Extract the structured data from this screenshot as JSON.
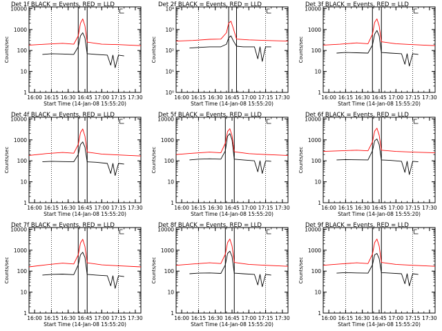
{
  "layout": {
    "rows": 3,
    "cols": 3
  },
  "colors": {
    "events": "#000000",
    "lld": "#ff0000",
    "axis": "#000000",
    "background": "#ffffff"
  },
  "chart_data": [
    {
      "type": "line",
      "title": "Det 1f BLACK = Events, RED = LLD",
      "xlabel": "Start Time (14-Jan-08 15:55:20)",
      "ylabel": "Counts/sec",
      "x_ticks": [
        "16:00",
        "16:15",
        "16:30",
        "16:45",
        "17:00",
        "17:15",
        "17:30"
      ],
      "y_ticks": [
        "1",
        "10",
        "100",
        "1000",
        "10000"
      ],
      "yscale": "log",
      "ylim": [
        1,
        12000
      ],
      "xlim": [
        "15:55",
        "17:35"
      ],
      "vlines_dotted": [
        "16:15",
        "17:15"
      ],
      "vlines_solid": [
        "16:39",
        "16:47"
      ],
      "legend": "none",
      "series": [
        {
          "name": "Events",
          "color": "#000000",
          "x": [
            "16:07",
            "16:15",
            "16:25",
            "16:35",
            "16:39",
            "16:41",
            "16:43",
            "16:45",
            "16:47",
            "16:55",
            "17:05",
            "17:08",
            "17:10",
            "17:12",
            "17:15",
            "17:20"
          ],
          "values": [
            65,
            70,
            68,
            65,
            150,
            500,
            700,
            400,
            70,
            65,
            60,
            20,
            60,
            15,
            60,
            55
          ]
        },
        {
          "name": "LLD",
          "color": "#ff0000",
          "x": [
            "15:55",
            "16:10",
            "16:25",
            "16:35",
            "16:39",
            "16:41",
            "16:43",
            "16:45",
            "16:47",
            "17:00",
            "17:15",
            "17:35"
          ],
          "values": [
            180,
            200,
            220,
            200,
            500,
            2000,
            3200,
            1500,
            250,
            200,
            190,
            170
          ]
        }
      ]
    },
    {
      "type": "line",
      "title": "Det 2f BLACK = Events, RED = LLD",
      "xlabel": "Start Time (14-Jan-08 15:55:20)",
      "ylabel": "Counts/sec",
      "x_ticks": [
        "16:00",
        "16:15",
        "16:30",
        "16:45",
        "17:00",
        "17:15",
        "17:30"
      ],
      "y_ticks": [
        "10⁰",
        "10¹",
        "10²",
        "10³",
        "10⁴"
      ],
      "yscale": "log",
      "ylim": [
        1,
        12000
      ],
      "xlim": [
        "15:55",
        "17:35"
      ],
      "vlines_dotted": [
        "16:15",
        "17:15"
      ],
      "vlines_solid": [
        "16:42",
        "16:49"
      ],
      "legend": "none",
      "series": [
        {
          "name": "Events",
          "color": "#000000",
          "x": [
            "16:07",
            "16:15",
            "16:25",
            "16:35",
            "16:40",
            "16:42",
            "16:44",
            "16:46",
            "16:49",
            "16:55",
            "17:05",
            "17:08",
            "17:10",
            "17:12",
            "17:15",
            "17:20"
          ],
          "values": [
            130,
            140,
            150,
            150,
            200,
            400,
            500,
            300,
            160,
            150,
            150,
            40,
            150,
            30,
            150,
            150
          ]
        },
        {
          "name": "LLD",
          "color": "#ff0000",
          "x": [
            "15:55",
            "16:10",
            "16:25",
            "16:35",
            "16:40",
            "16:42",
            "16:44",
            "16:46",
            "16:49",
            "17:00",
            "17:15",
            "17:35"
          ],
          "values": [
            280,
            300,
            340,
            350,
            700,
            2000,
            2500,
            1200,
            350,
            320,
            300,
            280
          ]
        }
      ]
    },
    {
      "type": "line",
      "title": "Det 3f BLACK = Events, RED = LLD",
      "xlabel": "Start Time (14-Jan-08 15:55:20)",
      "ylabel": "Counts/sec",
      "x_ticks": [
        "16:00",
        "16:15",
        "16:30",
        "16:45",
        "17:00",
        "17:15",
        "17:30"
      ],
      "y_ticks": [
        "1",
        "10",
        "100",
        "1000",
        "10000"
      ],
      "yscale": "log",
      "ylim": [
        1,
        12000
      ],
      "xlim": [
        "15:55",
        "17:35"
      ],
      "vlines_dotted": [
        "16:15",
        "17:15"
      ],
      "vlines_solid": [
        "16:39",
        "16:47"
      ],
      "legend": "none",
      "series": [
        {
          "name": "Events",
          "color": "#000000",
          "x": [
            "16:07",
            "16:15",
            "16:25",
            "16:35",
            "16:39",
            "16:41",
            "16:43",
            "16:45",
            "16:47",
            "16:55",
            "17:05",
            "17:08",
            "17:10",
            "17:12",
            "17:15",
            "17:20"
          ],
          "values": [
            75,
            80,
            78,
            75,
            180,
            600,
            900,
            500,
            80,
            75,
            70,
            22,
            70,
            18,
            70,
            65
          ]
        },
        {
          "name": "LLD",
          "color": "#ff0000",
          "x": [
            "15:55",
            "16:10",
            "16:25",
            "16:35",
            "16:39",
            "16:41",
            "16:43",
            "16:45",
            "16:47",
            "17:00",
            "17:15",
            "17:35"
          ],
          "values": [
            180,
            200,
            230,
            210,
            600,
            2200,
            3200,
            1500,
            260,
            210,
            190,
            170
          ]
        }
      ]
    },
    {
      "type": "line",
      "title": "Det 4f BLACK = Events, RED = LLD",
      "xlabel": "Start Time (14-Jan-08 15:55:20)",
      "ylabel": "Counts/sec",
      "x_ticks": [
        "16:00",
        "16:15",
        "16:30",
        "16:45",
        "17:00",
        "17:15",
        "17:30"
      ],
      "y_ticks": [
        "1",
        "10",
        "100",
        "1000",
        "10000"
      ],
      "yscale": "log",
      "ylim": [
        1,
        12000
      ],
      "xlim": [
        "15:55",
        "17:35"
      ],
      "vlines_dotted": [
        "16:15",
        "17:15"
      ],
      "vlines_solid": [
        "16:39",
        "16:47"
      ],
      "legend": "none",
      "series": [
        {
          "name": "Events",
          "color": "#000000",
          "x": [
            "16:07",
            "16:15",
            "16:25",
            "16:35",
            "16:39",
            "16:41",
            "16:43",
            "16:45",
            "16:47",
            "16:55",
            "17:05",
            "17:08",
            "17:10",
            "17:12",
            "17:15",
            "17:20"
          ],
          "values": [
            90,
            95,
            92,
            90,
            200,
            600,
            800,
            450,
            90,
            85,
            75,
            25,
            75,
            20,
            75,
            70
          ]
        },
        {
          "name": "LLD",
          "color": "#ff0000",
          "x": [
            "15:55",
            "16:10",
            "16:25",
            "16:35",
            "16:39",
            "16:41",
            "16:43",
            "16:45",
            "16:47",
            "17:00",
            "17:15",
            "17:35"
          ],
          "values": [
            180,
            220,
            250,
            230,
            600,
            2200,
            3300,
            1500,
            260,
            210,
            190,
            170
          ]
        }
      ]
    },
    {
      "type": "line",
      "title": "Det 5f BLACK = Events, RED = LLD",
      "xlabel": "Start Time (14-Jan-08 15:55:20)",
      "ylabel": "Counts/sec",
      "x_ticks": [
        "16:00",
        "16:15",
        "16:30",
        "16:45",
        "17:00",
        "17:15",
        "17:30"
      ],
      "y_ticks": [
        "1",
        "10",
        "100",
        "1000",
        "10000"
      ],
      "yscale": "log",
      "ylim": [
        1,
        12000
      ],
      "xlim": [
        "15:55",
        "17:35"
      ],
      "vlines_dotted": [
        "16:15",
        "17:15"
      ],
      "vlines_solid": [
        "16:39",
        "16:47"
      ],
      "legend": "none",
      "series": [
        {
          "name": "Events",
          "color": "#000000",
          "x": [
            "16:07",
            "16:15",
            "16:25",
            "16:35",
            "16:39",
            "16:41",
            "16:43",
            "16:45",
            "16:47",
            "16:55",
            "17:05",
            "17:08",
            "17:10",
            "17:12",
            "17:15",
            "17:20"
          ],
          "values": [
            110,
            120,
            125,
            120,
            300,
            1500,
            2000,
            1000,
            120,
            110,
            100,
            30,
            100,
            25,
            100,
            95
          ]
        },
        {
          "name": "LLD",
          "color": "#ff0000",
          "x": [
            "15:55",
            "16:10",
            "16:25",
            "16:35",
            "16:39",
            "16:41",
            "16:43",
            "16:45",
            "16:47",
            "17:00",
            "17:15",
            "17:35"
          ],
          "values": [
            200,
            230,
            260,
            240,
            700,
            2500,
            3400,
            1600,
            270,
            220,
            200,
            180
          ]
        }
      ]
    },
    {
      "type": "line",
      "title": "Det 6f BLACK = Events, RED = LLD",
      "xlabel": "Start Time (14-Jan-08 15:55:20)",
      "ylabel": "Counts/sec",
      "x_ticks": [
        "16:00",
        "16:15",
        "16:30",
        "16:45",
        "17:00",
        "17:15",
        "17:30"
      ],
      "y_ticks": [
        "1",
        "10",
        "100",
        "1000",
        "10000"
      ],
      "yscale": "log",
      "ylim": [
        1,
        12000
      ],
      "xlim": [
        "15:55",
        "17:35"
      ],
      "vlines_dotted": [
        "16:15",
        "17:15"
      ],
      "vlines_solid": [
        "16:39",
        "16:47"
      ],
      "legend": "none",
      "series": [
        {
          "name": "Events",
          "color": "#000000",
          "x": [
            "16:07",
            "16:15",
            "16:25",
            "16:35",
            "16:39",
            "16:41",
            "16:43",
            "16:45",
            "16:47",
            "16:55",
            "17:05",
            "17:08",
            "17:10",
            "17:12",
            "17:15",
            "17:20"
          ],
          "values": [
            110,
            115,
            112,
            110,
            300,
            900,
            1100,
            600,
            110,
            105,
            95,
            28,
            95,
            22,
            95,
            90
          ]
        },
        {
          "name": "LLD",
          "color": "#ff0000",
          "x": [
            "15:55",
            "16:10",
            "16:25",
            "16:35",
            "16:39",
            "16:41",
            "16:43",
            "16:45",
            "16:47",
            "17:00",
            "17:15",
            "17:35"
          ],
          "values": [
            280,
            300,
            320,
            300,
            800,
            2600,
            3600,
            1700,
            320,
            280,
            260,
            240
          ]
        }
      ]
    },
    {
      "type": "line",
      "title": "Det 7f BLACK = Events, RED = LLD",
      "xlabel": "Start Time (14-Jan-08 15:55:20)",
      "ylabel": "Counts/sec",
      "x_ticks": [
        "16:00",
        "16:15",
        "16:30",
        "16:45",
        "17:00",
        "17:15",
        "17:30"
      ],
      "y_ticks": [
        "1",
        "10",
        "100",
        "1000",
        "10000"
      ],
      "yscale": "log",
      "ylim": [
        1,
        12000
      ],
      "xlim": [
        "15:55",
        "17:35"
      ],
      "vlines_dotted": [
        "16:15",
        "17:15"
      ],
      "vlines_solid": [
        "16:39",
        "16:47"
      ],
      "legend": "none",
      "series": [
        {
          "name": "Events",
          "color": "#000000",
          "x": [
            "16:07",
            "16:15",
            "16:25",
            "16:35",
            "16:39",
            "16:41",
            "16:43",
            "16:45",
            "16:47",
            "16:55",
            "17:05",
            "17:08",
            "17:10",
            "17:12",
            "17:15",
            "17:20"
          ],
          "values": [
            65,
            70,
            72,
            68,
            200,
            600,
            800,
            450,
            70,
            65,
            60,
            20,
            60,
            15,
            60,
            55
          ]
        },
        {
          "name": "LLD",
          "color": "#ff0000",
          "x": [
            "15:55",
            "16:10",
            "16:25",
            "16:35",
            "16:39",
            "16:41",
            "16:43",
            "16:45",
            "16:47",
            "17:00",
            "17:15",
            "17:35"
          ],
          "values": [
            160,
            200,
            240,
            220,
            600,
            2200,
            3300,
            1500,
            250,
            200,
            180,
            160
          ]
        }
      ]
    },
    {
      "type": "line",
      "title": "Det 8f BLACK = Events, RED = LLD",
      "xlabel": "Start Time (14-Jan-08 15:55:20)",
      "ylabel": "Counts/sec",
      "x_ticks": [
        "16:00",
        "16:15",
        "16:30",
        "16:45",
        "17:00",
        "17:15",
        "17:30"
      ],
      "y_ticks": [
        "1",
        "10",
        "100",
        "1000",
        "10000"
      ],
      "yscale": "log",
      "ylim": [
        1,
        12000
      ],
      "xlim": [
        "15:55",
        "17:35"
      ],
      "vlines_dotted": [
        "16:15",
        "17:15"
      ],
      "vlines_solid": [
        "16:39",
        "16:47"
      ],
      "legend": "none",
      "series": [
        {
          "name": "Events",
          "color": "#000000",
          "x": [
            "16:07",
            "16:15",
            "16:25",
            "16:35",
            "16:39",
            "16:41",
            "16:43",
            "16:45",
            "16:47",
            "16:55",
            "17:05",
            "17:08",
            "17:10",
            "17:12",
            "17:15",
            "17:20"
          ],
          "values": [
            75,
            80,
            82,
            78,
            200,
            700,
            900,
            500,
            80,
            75,
            70,
            22,
            70,
            18,
            70,
            65
          ]
        },
        {
          "name": "LLD",
          "color": "#ff0000",
          "x": [
            "15:55",
            "16:10",
            "16:25",
            "16:35",
            "16:39",
            "16:41",
            "16:43",
            "16:45",
            "16:47",
            "17:00",
            "17:15",
            "17:35"
          ],
          "values": [
            190,
            220,
            250,
            230,
            650,
            2300,
            3400,
            1600,
            260,
            210,
            190,
            170
          ]
        }
      ]
    },
    {
      "type": "line",
      "title": "Det 9f BLACK = Events, RED = LLD",
      "xlabel": "Start Time (14-Jan-08 15:55:20)",
      "ylabel": "Counts/sec",
      "x_ticks": [
        "16:00",
        "16:15",
        "16:30",
        "16:45",
        "17:00",
        "17:15",
        "17:30"
      ],
      "y_ticks": [
        "1",
        "10",
        "100",
        "1000",
        "10000"
      ],
      "yscale": "log",
      "ylim": [
        1,
        12000
      ],
      "xlim": [
        "15:55",
        "17:35"
      ],
      "vlines_dotted": [
        "16:15",
        "17:15"
      ],
      "vlines_solid": [
        "16:39",
        "16:47"
      ],
      "legend": "none",
      "series": [
        {
          "name": "Events",
          "color": "#000000",
          "x": [
            "16:07",
            "16:15",
            "16:25",
            "16:35",
            "16:39",
            "16:41",
            "16:43",
            "16:45",
            "16:47",
            "16:55",
            "17:05",
            "17:08",
            "17:10",
            "17:12",
            "17:15",
            "17:20"
          ],
          "values": [
            80,
            85,
            82,
            80,
            200,
            600,
            700,
            400,
            85,
            80,
            75,
            25,
            75,
            20,
            75,
            70
          ]
        },
        {
          "name": "LLD",
          "color": "#ff0000",
          "x": [
            "15:55",
            "16:10",
            "16:25",
            "16:35",
            "16:39",
            "16:41",
            "16:43",
            "16:45",
            "16:47",
            "17:00",
            "17:15",
            "17:35"
          ],
          "values": [
            190,
            220,
            250,
            230,
            650,
            2300,
            3400,
            1600,
            260,
            210,
            190,
            170
          ]
        }
      ]
    }
  ]
}
